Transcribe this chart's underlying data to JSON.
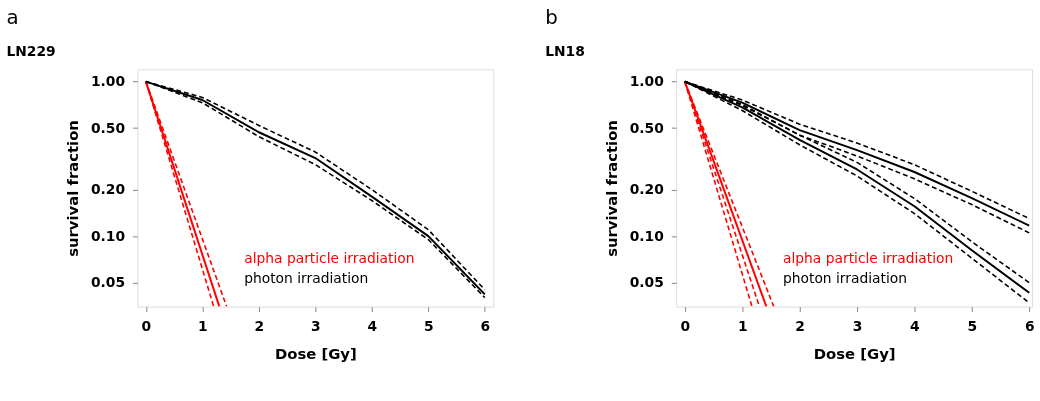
{
  "chart_data": [
    {
      "type": "line",
      "title": "a",
      "subtitle": "LN229",
      "xlabel": "Dose [Gy]",
      "ylabel": "survival fraction",
      "log": true,
      "grid": false,
      "legend": "bottom",
      "marker": "none",
      "xlim": [
        -0.15,
        6.15
      ],
      "xticks": [
        0,
        1,
        2,
        3,
        4,
        5,
        6
      ],
      "ylim": [
        0.035,
        1.2
      ],
      "yticks": [
        {
          "value": 1,
          "label": "1.00"
        },
        {
          "value": 0.5,
          "label": "0.50"
        },
        {
          "value": 0.2,
          "label": "0.20"
        },
        {
          "value": 0.1,
          "label": "0.10"
        },
        {
          "value": 0.05,
          "label": "0.05"
        }
      ],
      "series": [
        {
          "name": "alpha particle irradiation",
          "color": "#ff0000",
          "line_style": "solid",
          "x": [
            0,
            1.3
          ],
          "values": [
            1,
            0.035
          ]
        },
        {
          "color": "#ff0000",
          "line_style": "dashed",
          "x": [
            0,
            1.2
          ],
          "values": [
            1,
            0.035
          ]
        },
        {
          "color": "#ff0000",
          "line_style": "dashed",
          "x": [
            0,
            1.43
          ],
          "values": [
            1,
            0.035
          ]
        },
        {
          "name": "photon irradiation",
          "color": "#000000",
          "line_style": "solid",
          "x": [
            0,
            1,
            2,
            3,
            4,
            5,
            6
          ],
          "values": [
            1,
            0.76,
            0.47,
            0.32,
            0.18,
            0.1,
            0.042
          ]
        },
        {
          "color": "#000000",
          "line_style": "dashed",
          "x": [
            0,
            1,
            2,
            3,
            4,
            5,
            6
          ],
          "values": [
            1,
            0.79,
            0.52,
            0.35,
            0.2,
            0.11,
            0.045
          ]
        },
        {
          "color": "#000000",
          "line_style": "dashed",
          "x": [
            0,
            1,
            2,
            3,
            4,
            5,
            6
          ],
          "values": [
            1,
            0.73,
            0.44,
            0.29,
            0.17,
            0.095,
            0.04
          ]
        }
      ]
    },
    {
      "type": "line",
      "title": "b",
      "subtitle": "LN18",
      "xlabel": "Dose [Gy]",
      "ylabel": "survival fraction",
      "log": true,
      "grid": false,
      "legend": "bottom",
      "marker": "none",
      "xlim": [
        -0.15,
        6.05
      ],
      "xticks": [
        0,
        1,
        2,
        3,
        4,
        5,
        6
      ],
      "ylim": [
        0.035,
        1.2
      ],
      "yticks": [
        {
          "value": 1,
          "label": "1.00"
        },
        {
          "value": 0.5,
          "label": "0.50"
        },
        {
          "value": 0.2,
          "label": "0.20"
        },
        {
          "value": 0.1,
          "label": "0.10"
        },
        {
          "value": 0.05,
          "label": "0.05"
        }
      ],
      "series": [
        {
          "name": "alpha particle irradiation",
          "color": "#ff0000",
          "line_style": "solid",
          "x": [
            0,
            1.42
          ],
          "values": [
            1,
            0.035
          ]
        },
        {
          "color": "#ff0000",
          "line_style": "dashed",
          "x": [
            0,
            1.55
          ],
          "values": [
            1,
            0.035
          ]
        },
        {
          "color": "#ff0000",
          "line_style": "dashed",
          "x": [
            0,
            1.3
          ],
          "values": [
            1,
            0.035
          ]
        },
        {
          "color": "#ff0000",
          "line_style": "dashed",
          "x": [
            0,
            1.17
          ],
          "values": [
            1,
            0.035
          ]
        },
        {
          "name": "photon irradiation",
          "color": "#000000",
          "line_style": "solid",
          "x": [
            0,
            1,
            2,
            3,
            4,
            5,
            6
          ],
          "values": [
            1,
            0.73,
            0.485,
            0.36,
            0.26,
            0.176,
            0.117
          ]
        },
        {
          "color": "#000000",
          "line_style": "dashed",
          "x": [
            0,
            1,
            2,
            3,
            4,
            5,
            6
          ],
          "values": [
            1,
            0.76,
            0.53,
            0.4,
            0.29,
            0.195,
            0.13
          ]
        },
        {
          "color": "#000000",
          "line_style": "dashed",
          "x": [
            0,
            1,
            2,
            3,
            4,
            5,
            6
          ],
          "values": [
            1,
            0.7,
            0.45,
            0.33,
            0.235,
            0.16,
            0.105
          ]
        },
        {
          "color": "#000000",
          "line_style": "solid",
          "x": [
            0,
            1,
            2,
            3,
            4,
            5,
            6
          ],
          "values": [
            1,
            0.68,
            0.42,
            0.27,
            0.156,
            0.081,
            0.043
          ]
        },
        {
          "color": "#000000",
          "line_style": "dashed",
          "x": [
            0,
            1,
            2,
            3,
            4,
            5,
            6
          ],
          "values": [
            1,
            0.71,
            0.45,
            0.3,
            0.175,
            0.092,
            0.05
          ]
        },
        {
          "color": "#000000",
          "line_style": "dashed",
          "x": [
            0,
            1,
            2,
            3,
            4,
            5,
            6
          ],
          "values": [
            1,
            0.65,
            0.39,
            0.245,
            0.14,
            0.072,
            0.037
          ]
        }
      ]
    }
  ]
}
